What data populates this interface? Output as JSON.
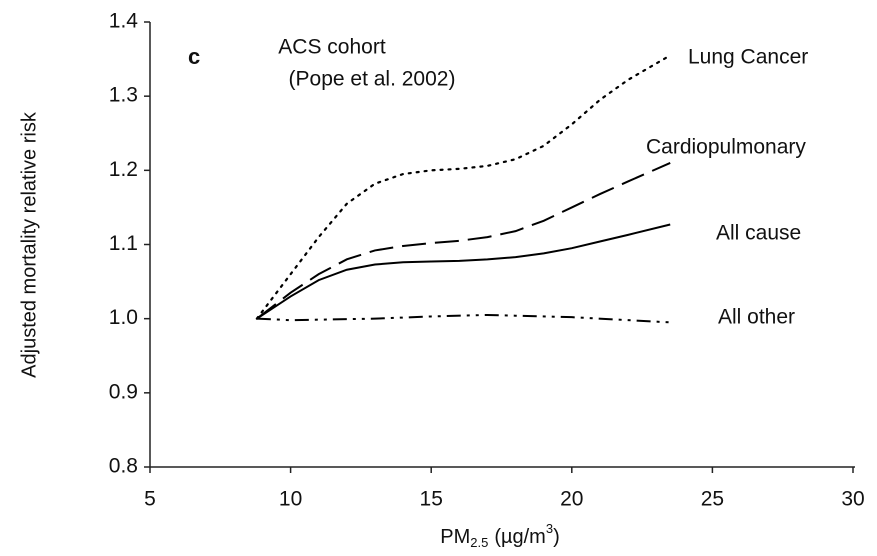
{
  "chart_data": {
    "type": "line",
    "panel": "c",
    "annotations": [
      "ACS cohort",
      "(Pope et al. 2002)"
    ],
    "xlabel": [
      "PM",
      "2.5",
      "(µg/m",
      "3",
      ")"
    ],
    "ylabel": "Adjusted mortality relative risk",
    "xlim": [
      5,
      30
    ],
    "xticks": [
      5,
      10,
      15,
      20,
      25,
      30
    ],
    "ylim": [
      0.8,
      1.4
    ],
    "yticks": [
      0.8,
      0.9,
      {
        "value": 1,
        "label": "1.0"
      },
      1.1,
      1.2,
      1.3,
      1.4
    ],
    "grid": false,
    "series": [
      {
        "name": "Lung Cancer",
        "color": "#000000",
        "style": "dotted",
        "x": [
          8.8,
          10,
          11,
          12,
          13,
          14,
          15,
          16,
          17,
          18,
          19,
          20,
          21,
          22,
          23.5
        ],
        "values": [
          1.0,
          1.06,
          1.11,
          1.155,
          1.182,
          1.195,
          1.2,
          1.202,
          1.206,
          1.215,
          1.233,
          1.262,
          1.295,
          1.322,
          1.355
        ]
      },
      {
        "name": "Cardiopulmonary",
        "color": "#000000",
        "style": "dashed",
        "x": [
          8.8,
          10,
          11,
          12,
          13,
          14,
          15,
          16,
          17,
          18,
          19,
          20,
          21,
          22,
          23.5
        ],
        "values": [
          1.0,
          1.035,
          1.06,
          1.08,
          1.092,
          1.098,
          1.102,
          1.105,
          1.11,
          1.118,
          1.132,
          1.15,
          1.168,
          1.185,
          1.21
        ]
      },
      {
        "name": "All cause",
        "color": "#000000",
        "style": "solid",
        "x": [
          8.8,
          10,
          11,
          12,
          13,
          14,
          15,
          16,
          17,
          18,
          19,
          20,
          21,
          22,
          23.5
        ],
        "values": [
          1.0,
          1.03,
          1.052,
          1.066,
          1.073,
          1.076,
          1.077,
          1.078,
          1.08,
          1.083,
          1.088,
          1.095,
          1.104,
          1.113,
          1.127
        ]
      },
      {
        "name": "All other",
        "color": "#000000",
        "style": "dashdot",
        "x": [
          8.8,
          10,
          13,
          15,
          17,
          18,
          20,
          22,
          23.5
        ],
        "values": [
          1.0,
          0.998,
          1.0,
          1.003,
          1.005,
          1.004,
          1.002,
          0.998,
          0.995
        ]
      }
    ]
  }
}
